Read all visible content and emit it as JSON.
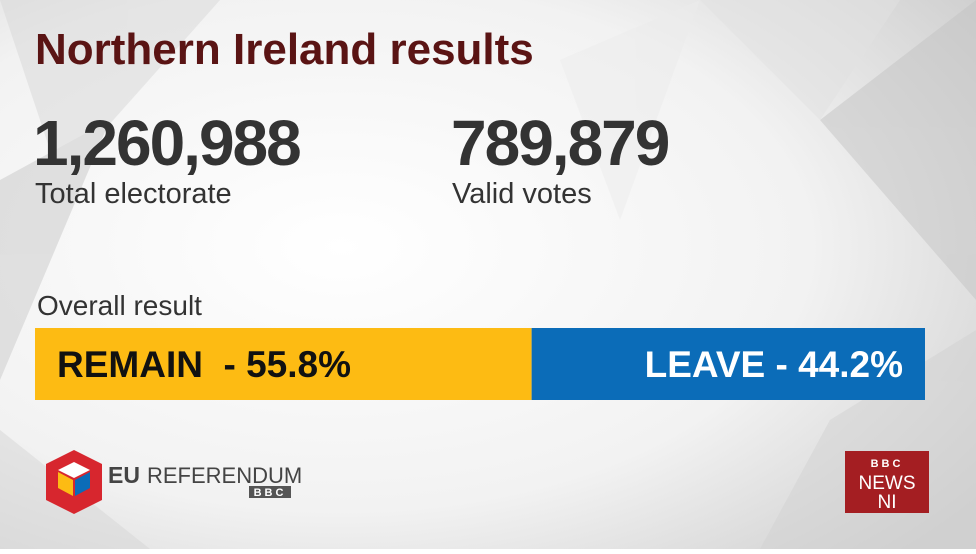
{
  "header": {
    "title": "Northern Ireland results"
  },
  "stats": [
    {
      "value": "1,260,988",
      "label": "Total electorate"
    },
    {
      "value": "789,879",
      "label": "Valid votes"
    }
  ],
  "result": {
    "title": "Overall result",
    "segments": [
      {
        "label": "REMAIN  - 55.8%",
        "value": 55.8,
        "color": "#fdbb13",
        "text_color": "#111111"
      },
      {
        "label": "LEAVE - 44.2%",
        "value": 44.2,
        "color": "#0b6cb8",
        "text_color": "#ffffff"
      }
    ]
  },
  "logos": {
    "eu_referendum": {
      "eu": "EU",
      "referendum": "REFERENDUM",
      "bbc": "BBC"
    },
    "bbc_news_ni": {
      "bbc": "BBC",
      "news": "NEWS",
      "ni": "NI"
    }
  }
}
